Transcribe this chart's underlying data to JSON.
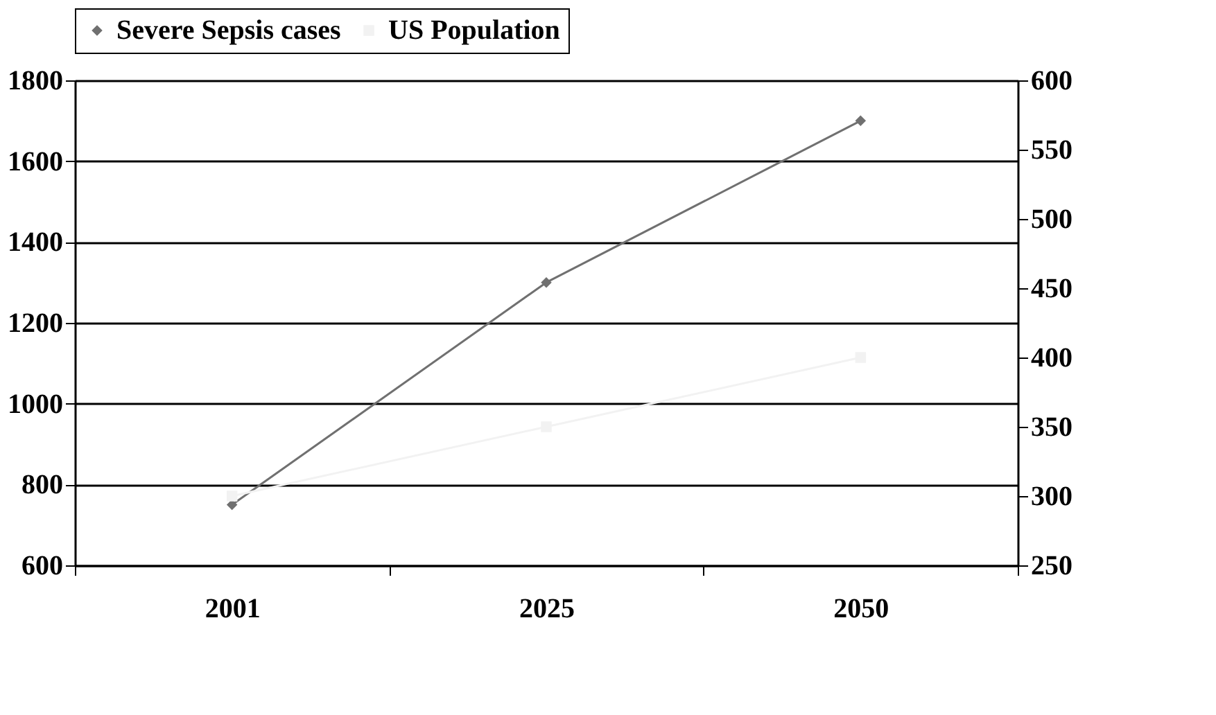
{
  "chart_data": {
    "type": "line",
    "categories": [
      "2001",
      "2025",
      "2050"
    ],
    "series": [
      {
        "name": "Severe Sepsis cases",
        "color": "#707070",
        "marker": "diamond",
        "values": [
          750,
          1300,
          1700
        ]
      },
      {
        "name": "US Population",
        "color": "#f2f2f2",
        "marker": "square",
        "axis": "y2",
        "values": [
          300,
          350,
          400
        ]
      }
    ],
    "ylim": [
      600,
      1800
    ],
    "yticks": [
      600,
      800,
      1000,
      1200,
      1400,
      1600,
      1800
    ],
    "y2lim": [
      250,
      600
    ],
    "y2ticks": [
      250,
      300,
      350,
      400,
      450,
      500,
      550,
      600
    ],
    "grid": "y",
    "legend": "top"
  }
}
